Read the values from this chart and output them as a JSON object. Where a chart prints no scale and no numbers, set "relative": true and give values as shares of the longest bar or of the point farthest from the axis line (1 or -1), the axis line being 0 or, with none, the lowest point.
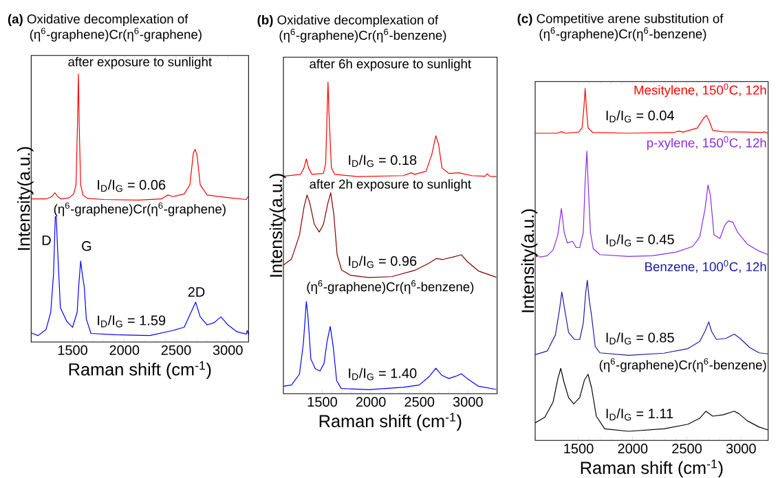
{
  "chart_data": [
    {
      "type": "line",
      "relative": true,
      "title": "**(a)** Oxidative decomplexation of",
      "subtitle": "(η$^{6}$-graphene)Cr(η$^{6}$-graphene)",
      "xlabel": "Raman shift (cm$^{-1}$)",
      "ylabel": "Intensity(a.u.)",
      "xlim": [
        1100,
        3200
      ],
      "xticks": [
        1500,
        2000,
        2500,
        3000
      ],
      "series": [
        {
          "name": "after exposure to sunlight",
          "color": "#ff0000",
          "x": [
            1100,
            1244,
            1300,
            1329,
            1356,
            1389,
            1467,
            1511,
            1533,
            1547,
            1556,
            1564,
            1578,
            1600,
            1644,
            1800,
            2133,
            2356,
            2422,
            2467,
            2578,
            2633,
            2667,
            2684,
            2702,
            2733,
            2800,
            2911,
            3022,
            3178,
            3200
          ],
          "values": [
            0.534,
            0.534,
            0.543,
            0.557,
            0.543,
            0.534,
            0.538,
            0.553,
            0.587,
            0.809,
            1.0,
            0.809,
            0.587,
            0.549,
            0.536,
            0.532,
            0.53,
            0.534,
            0.549,
            0.543,
            0.553,
            0.587,
            0.706,
            0.719,
            0.698,
            0.587,
            0.549,
            0.543,
            0.538,
            0.532,
            0.545
          ]
        },
        {
          "name": "(η$^{6}$-graphene)Cr(η$^{6}$-graphene)",
          "color": "#0000ff",
          "x": [
            1100,
            1167,
            1244,
            1289,
            1316,
            1333,
            1342,
            1356,
            1382,
            1444,
            1500,
            1544,
            1560,
            1578,
            1596,
            1613,
            1633,
            1678,
            1911,
            2244,
            2467,
            2578,
            2644,
            2689,
            2733,
            2800,
            2867,
            2933,
            3000,
            3089,
            3178,
            3187,
            3200
          ],
          "values": [
            0.034,
            0.024,
            0.047,
            0.111,
            0.255,
            0.468,
            0.468,
            0.34,
            0.128,
            0.077,
            0.055,
            0.111,
            0.213,
            0.302,
            0.247,
            0.204,
            0.085,
            0.032,
            0.027,
            0.024,
            0.043,
            0.055,
            0.111,
            0.149,
            0.094,
            0.064,
            0.072,
            0.094,
            0.064,
            0.038,
            0.03,
            0.043,
            0.027
          ]
        }
      ],
      "annotations": [
        "I$_{D}$/I$_{G}$ = 0.06",
        "I$_{D}$/I$_{G}$ = 1.59",
        "D",
        "G",
        "2D"
      ]
    },
    {
      "type": "line",
      "relative": true,
      "title": "**(b)** Oxidative decomplexation of",
      "subtitle": "(η$^{6}$-graphene)Cr(η$^{6}$-benzene)",
      "xlabel": "Raman shift (cm$^{-1}$)",
      "ylabel": "Intensity(a.u.)",
      "xlim": [
        1100,
        3300
      ],
      "xticks": [
        1500,
        2000,
        2500,
        3000
      ],
      "series": [
        {
          "name": "after 6h exposure to sunlight",
          "color": "#ff0000",
          "x": [
            1100,
            1277,
            1312,
            1336,
            1359,
            1394,
            1512,
            1535,
            1549,
            1559,
            1570,
            1594,
            1629,
            1864,
            2333,
            2415,
            2451,
            2568,
            2627,
            2669,
            2697,
            2732,
            2803,
            2908,
            3038,
            3178,
            3197,
            3225,
            3291
          ],
          "values": [
            0.698,
            0.704,
            0.725,
            0.754,
            0.725,
            0.704,
            0.707,
            0.739,
            0.892,
            1.0,
            0.892,
            0.725,
            0.704,
            0.697,
            0.7,
            0.709,
            0.704,
            0.714,
            0.767,
            0.828,
            0.801,
            0.725,
            0.707,
            0.709,
            0.7,
            0.698,
            0.706,
            0.698,
            0.697
          ]
        },
        {
          "name": "after 2h exposure to sunlight",
          "color": "#800000",
          "x": [
            1100,
            1183,
            1265,
            1312,
            1343,
            1371,
            1418,
            1469,
            1512,
            1559,
            1587,
            1618,
            1653,
            1700,
            1793,
            1981,
            2216,
            2451,
            2592,
            2674,
            2744,
            2850,
            2932,
            2991,
            3108,
            3291
          ],
          "values": [
            0.413,
            0.432,
            0.509,
            0.599,
            0.638,
            0.613,
            0.544,
            0.519,
            0.544,
            0.613,
            0.645,
            0.578,
            0.446,
            0.397,
            0.38,
            0.373,
            0.376,
            0.396,
            0.418,
            0.434,
            0.431,
            0.439,
            0.446,
            0.425,
            0.394,
            0.374
          ]
        },
        {
          "name": "(η$^{6}$-graphene)Cr(η$^{6}$-benzene)",
          "color": "#0000ff",
          "x": [
            1100,
            1183,
            1265,
            1305,
            1336,
            1352,
            1383,
            1429,
            1477,
            1519,
            1549,
            1582,
            1612,
            1648,
            1695,
            1977,
            2333,
            2498,
            2603,
            2669,
            2732,
            2803,
            2873,
            2932,
            2991,
            3108,
            3291
          ],
          "values": [
            0.024,
            0.028,
            0.063,
            0.16,
            0.296,
            0.251,
            0.111,
            0.08,
            0.073,
            0.098,
            0.167,
            0.216,
            0.153,
            0.042,
            0.017,
            0.013,
            0.021,
            0.028,
            0.056,
            0.082,
            0.059,
            0.049,
            0.056,
            0.064,
            0.049,
            0.024,
            0.014
          ]
        }
      ],
      "annotations": [
        "I$_{D}$/I$_{G}$ = 0.18",
        "I$_{D}$/I$_{G}$ = 0.96",
        "I$_{D}$/I$_{G}$ = 1.40"
      ]
    },
    {
      "type": "line",
      "relative": true,
      "title": "**(c)** Competitive arene substitution of",
      "subtitle": "(η$^{6}$-graphene)Cr(η$^{6}$-benzene)",
      "xlabel": "Raman shift (cm$^{-1}$)",
      "ylabel": "Intensity(a.u.)",
      "xlim": [
        1100,
        3250
      ],
      "xticks": [
        1500,
        2000,
        2500,
        3000
      ],
      "series": [
        {
          "name": "Mesitylene, 150$^{0}$C, 12h",
          "color": "#ff0000",
          "x": [
            1100,
            1303,
            1342,
            1379,
            1500,
            1533,
            1550,
            1561,
            1572,
            1588,
            1632,
            1961,
            2377,
            2425,
            2465,
            2596,
            2651,
            2680,
            2706,
            2739,
            2838,
            3057,
            3200,
            3211,
            3250
          ],
          "values": [
            0.873,
            0.873,
            0.877,
            0.873,
            0.876,
            0.888,
            0.947,
            1.0,
            0.947,
            0.888,
            0.875,
            0.873,
            0.875,
            0.879,
            0.876,
            0.888,
            0.914,
            0.924,
            0.908,
            0.881,
            0.877,
            0.876,
            0.875,
            0.877,
            0.873
          ]
        },
        {
          "name": "p-xylene, 150$^{0}$C, 12h",
          "color": "#8a2be2",
          "x": [
            1100,
            1144,
            1211,
            1265,
            1309,
            1342,
            1368,
            1397,
            1445,
            1478,
            1511,
            1544,
            1561,
            1577,
            1588,
            1610,
            1636,
            1697,
            1961,
            2180,
            2399,
            2553,
            2618,
            2667,
            2695,
            2717,
            2750,
            2805,
            2849,
            2882,
            2925,
            2969,
            3057,
            3167,
            3250
          ],
          "values": [
            0.531,
            0.521,
            0.525,
            0.541,
            0.584,
            0.659,
            0.591,
            0.561,
            0.566,
            0.548,
            0.548,
            0.591,
            0.736,
            0.822,
            0.736,
            0.591,
            0.545,
            0.528,
            0.523,
            0.525,
            0.535,
            0.551,
            0.578,
            0.657,
            0.726,
            0.696,
            0.584,
            0.574,
            0.611,
            0.624,
            0.62,
            0.591,
            0.558,
            0.538,
            0.528
          ]
        },
        {
          "name": "Benzene, 100$^{0}$C, 12h",
          "color": "#1a1aa6",
          "x": [
            1100,
            1211,
            1287,
            1325,
            1346,
            1368,
            1408,
            1463,
            1511,
            1544,
            1566,
            1581,
            1599,
            1621,
            1654,
            1697,
            1961,
            2289,
            2509,
            2618,
            2667,
            2702,
            2728,
            2772,
            2860,
            2937,
            2991,
            3079,
            3167,
            3250
          ],
          "values": [
            0.244,
            0.254,
            0.3,
            0.373,
            0.422,
            0.38,
            0.307,
            0.287,
            0.287,
            0.333,
            0.419,
            0.455,
            0.399,
            0.353,
            0.267,
            0.249,
            0.242,
            0.248,
            0.261,
            0.281,
            0.31,
            0.337,
            0.31,
            0.287,
            0.29,
            0.302,
            0.29,
            0.264,
            0.249,
            0.246
          ]
        },
        {
          "name": "(η$^{6}$-graphene)Cr(η$^{6}$-benzene)",
          "color": "#000000",
          "x": [
            1100,
            1189,
            1265,
            1309,
            1336,
            1364,
            1408,
            1456,
            1511,
            1555,
            1588,
            1621,
            1664,
            1741,
            1961,
            2289,
            2509,
            2618,
            2675,
            2739,
            2838,
            2937,
            2980,
            3057,
            3167,
            3250
          ],
          "values": [
            0.05,
            0.066,
            0.109,
            0.175,
            0.205,
            0.168,
            0.122,
            0.104,
            0.122,
            0.172,
            0.188,
            0.149,
            0.069,
            0.033,
            0.026,
            0.033,
            0.046,
            0.063,
            0.083,
            0.069,
            0.073,
            0.083,
            0.076,
            0.056,
            0.038,
            0.03
          ]
        }
      ],
      "annotations": [
        "I$_{D}$/I$_{G}$ = 0.04",
        "I$_{D}$/I$_{G}$ = 0.45",
        "I$_{D}$/I$_{G}$ = 0.85",
        "I$_{D}$/I$_{G}$ = 1.11"
      ]
    }
  ]
}
